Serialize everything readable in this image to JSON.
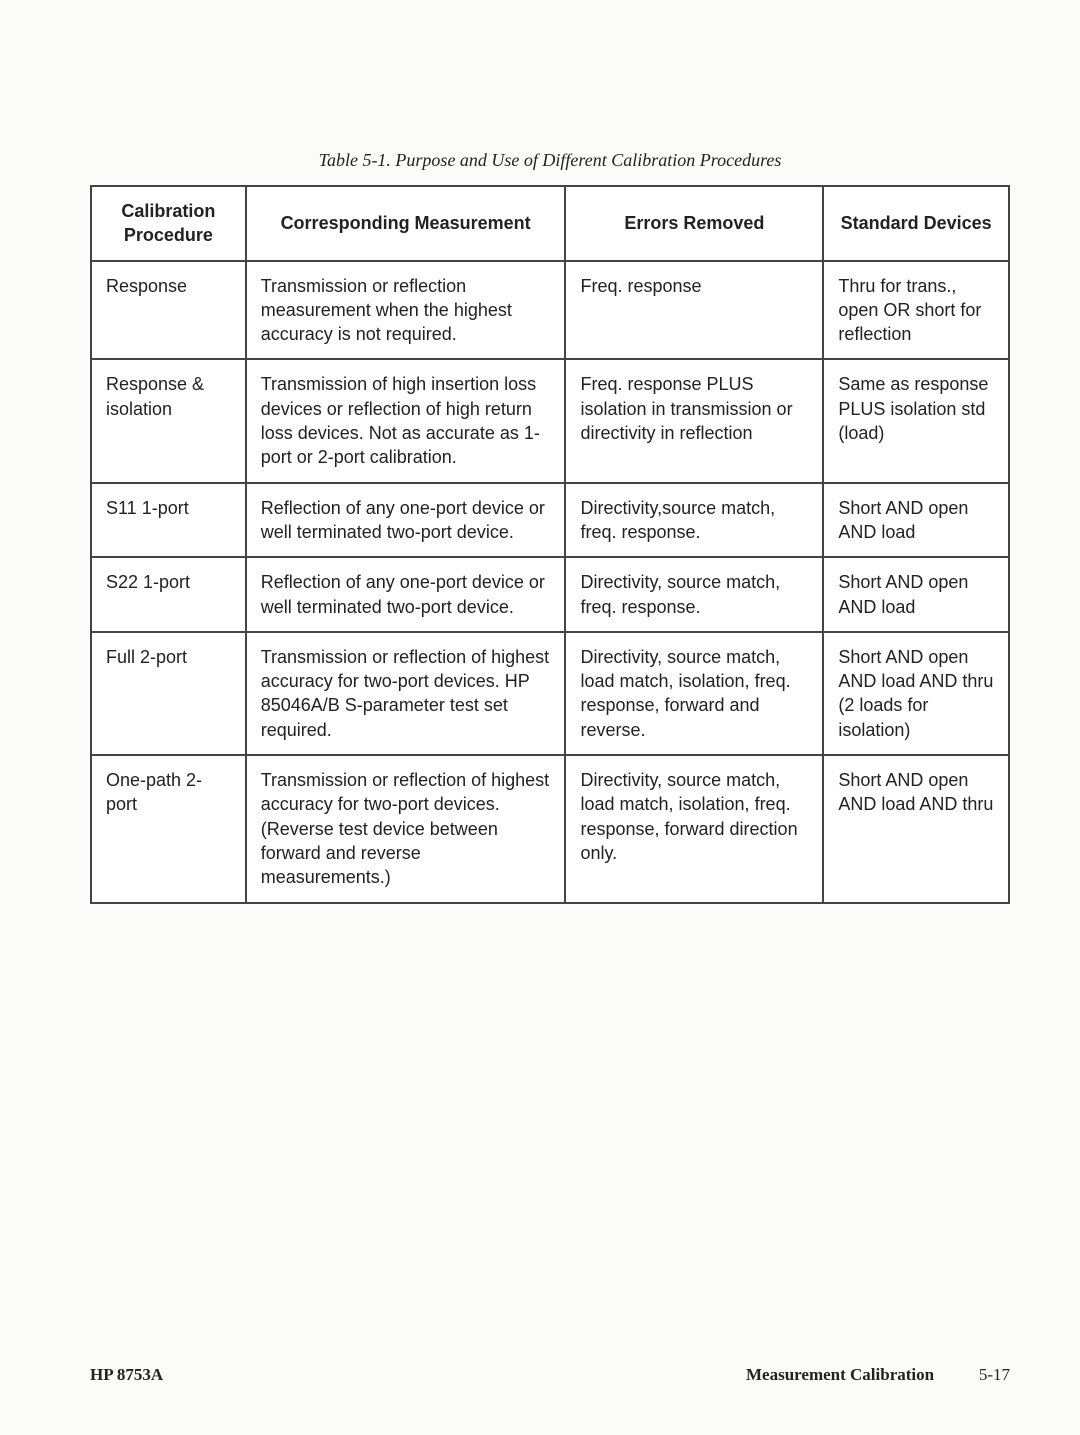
{
  "caption": "Table 5-1.   Purpose and Use of Different Calibration Procedures",
  "columns": [
    "Calibration Procedure",
    "Corresponding Measurement",
    "Errors Removed",
    "Standard Devices"
  ],
  "rows": [
    {
      "procedure": "Response",
      "measurement": "Transmission or reflection measurement when the highest accuracy is not required.",
      "errors": "Freq. response",
      "devices": "Thru for trans., open OR short for reflection"
    },
    {
      "procedure": "Response & isolation",
      "measurement": "Transmission of high insertion loss devices or reflection of high return loss devices. Not as accurate as 1-port or 2-port calibration.",
      "errors": "Freq. response PLUS isolation in transmission or directivity in reflection",
      "devices": "Same as response PLUS isolation std (load)"
    },
    {
      "procedure": "S11 1-port",
      "measurement": "Reflection of any one-port device or well terminated two-port device.",
      "errors": "Directivity,source match, freq. response.",
      "devices": "Short AND open AND load"
    },
    {
      "procedure": "S22 1-port",
      "measurement": "Reflection of any one-port device or well terminated two-port device.",
      "errors": "Directivity, source match, freq. response.",
      "devices": "Short AND open AND load"
    },
    {
      "procedure": "Full 2-port",
      "measurement": "Transmission or reflection of highest accuracy for two-port devices. HP 85046A/B S-parameter test set required.",
      "errors": "Directivity, source match, load match, isolation, freq. response, forward and reverse.",
      "devices": "Short AND open AND load AND thru (2 loads for isolation)"
    },
    {
      "procedure": "One-path 2-port",
      "measurement": "Transmission or reflection of highest accuracy for two-port devices. (Reverse test device between forward and reverse measurements.)",
      "errors": "Directivity, source match, load match, isolation, freq. response, forward direction only.",
      "devices": "Short AND open AND load AND thru"
    }
  ],
  "footer": {
    "left": "HP 8753A",
    "section": "Measurement Calibration",
    "page": "5-17"
  }
}
